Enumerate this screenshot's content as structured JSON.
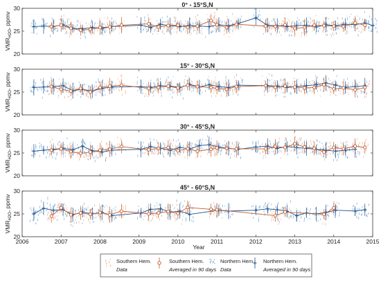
{
  "colors": {
    "southern": "#e8956b",
    "southern_dark": "#c25a2a",
    "northern": "#3d8cc9",
    "northern_dark": "#1b4f8a",
    "axis": "#333333"
  },
  "chart_data": [
    {
      "type": "scatter",
      "title": "0° - 15°S,N",
      "ylabel_main": "VMR",
      "ylabel_sub": "H2O",
      "ylabel_unit": ", ppmv",
      "xlim": [
        2006,
        2015
      ],
      "ylim": [
        20,
        30
      ],
      "yticks": [
        "20",
        "25",
        "30"
      ],
      "series": [
        {
          "name": "Southern Hem.",
          "x": [
            2006.75,
            2007.0,
            2007.25,
            2007.5,
            2007.75,
            2008.0,
            2008.25,
            2008.55,
            2009.25,
            2009.5,
            2009.75,
            2010.0,
            2010.25,
            2010.5,
            2010.85,
            2011.0,
            2011.25,
            2011.5,
            2012.25,
            2012.5,
            2012.75,
            2013.0,
            2013.25,
            2013.5,
            2013.75,
            2014.0,
            2014.25,
            2014.55,
            2014.8
          ],
          "y": [
            26.0,
            26.3,
            25.6,
            25.2,
            25.4,
            25.8,
            25.9,
            26.3,
            26.6,
            25.9,
            26.2,
            26.3,
            25.8,
            26.1,
            27.3,
            26.4,
            25.8,
            26.5,
            26.1,
            26.0,
            26.4,
            25.6,
            25.8,
            26.3,
            26.2,
            26.1,
            26.0,
            26.8,
            26.3
          ]
        },
        {
          "name": "Northern Hem.",
          "x": [
            2006.3,
            2006.55,
            2006.8,
            2007.05,
            2007.3,
            2007.55,
            2007.8,
            2008.05,
            2008.3,
            2009.05,
            2009.3,
            2009.55,
            2009.8,
            2010.05,
            2010.3,
            2010.55,
            2010.8,
            2011.05,
            2011.3,
            2011.55,
            2012.0,
            2012.3,
            2012.55,
            2012.8,
            2013.05,
            2013.3,
            2013.55,
            2013.8,
            2014.05,
            2014.3,
            2014.55,
            2014.8,
            2015.0
          ],
          "y": [
            26.0,
            26.1,
            26.0,
            26.4,
            25.6,
            25.5,
            25.8,
            25.6,
            26.0,
            26.3,
            25.8,
            26.5,
            26.2,
            26.0,
            26.3,
            26.1,
            26.0,
            26.4,
            26.2,
            26.7,
            27.9,
            26.3,
            26.2,
            26.0,
            26.2,
            26.3,
            25.9,
            26.4,
            26.2,
            26.5,
            26.4,
            26.8,
            26.2
          ]
        }
      ]
    },
    {
      "type": "scatter",
      "title": "15° - 30°S,N",
      "ylabel_main": "VMR",
      "ylabel_sub": "H2O",
      "ylabel_unit": ", ppmv",
      "xlim": [
        2006,
        2015
      ],
      "ylim": [
        20,
        30
      ],
      "yticks": [
        "20",
        "25",
        "30"
      ],
      "series": [
        {
          "name": "Southern Hem.",
          "x": [
            2006.75,
            2007.0,
            2007.25,
            2007.5,
            2007.75,
            2008.0,
            2008.25,
            2008.55,
            2009.25,
            2009.5,
            2009.75,
            2010.0,
            2010.25,
            2010.5,
            2010.85,
            2011.0,
            2011.25,
            2011.5,
            2012.25,
            2012.5,
            2012.75,
            2013.0,
            2013.25,
            2013.5,
            2013.75,
            2014.0,
            2014.25,
            2014.55,
            2014.8
          ],
          "y": [
            26.2,
            25.6,
            25.2,
            25.8,
            25.0,
            26.0,
            26.3,
            26.5,
            25.8,
            26.0,
            26.3,
            25.9,
            26.5,
            26.2,
            26.0,
            25.8,
            25.6,
            26.2,
            26.4,
            26.0,
            26.3,
            26.1,
            25.9,
            26.0,
            26.6,
            25.7,
            25.9,
            25.5,
            26.0
          ]
        },
        {
          "name": "Northern Hem.",
          "x": [
            2006.3,
            2006.55,
            2006.8,
            2007.05,
            2007.3,
            2007.55,
            2007.8,
            2008.05,
            2008.3,
            2009.05,
            2009.3,
            2009.55,
            2009.8,
            2010.05,
            2010.3,
            2010.55,
            2010.8,
            2011.05,
            2011.3,
            2011.55,
            2012.3,
            2012.55,
            2012.8,
            2013.05,
            2013.3,
            2013.55,
            2013.8,
            2014.05,
            2014.3,
            2014.55,
            2014.8
          ],
          "y": [
            26.0,
            26.1,
            26.2,
            26.4,
            25.3,
            25.6,
            25.2,
            25.8,
            26.1,
            26.2,
            26.0,
            26.4,
            26.3,
            26.0,
            26.7,
            26.1,
            26.6,
            26.2,
            26.0,
            26.5,
            26.4,
            26.3,
            26.0,
            26.2,
            26.4,
            26.6,
            27.0,
            26.5,
            26.0,
            26.2,
            26.4
          ]
        }
      ]
    },
    {
      "type": "scatter",
      "title": "30° - 45°S,N",
      "ylabel_main": "VMR",
      "ylabel_sub": "H2O",
      "ylabel_unit": ", ppmv",
      "xlim": [
        2006,
        2015
      ],
      "ylim": [
        20,
        30
      ],
      "yticks": [
        "20",
        "25",
        "30"
      ],
      "series": [
        {
          "name": "Southern Hem.",
          "x": [
            2006.75,
            2007.0,
            2007.25,
            2007.5,
            2007.75,
            2008.0,
            2008.25,
            2008.55,
            2009.25,
            2009.5,
            2009.75,
            2010.0,
            2010.25,
            2010.5,
            2010.85,
            2011.0,
            2011.25,
            2011.5,
            2012.25,
            2012.5,
            2012.75,
            2013.0,
            2013.25,
            2013.5,
            2013.75,
            2014.0,
            2014.25,
            2014.55,
            2014.8
          ],
          "y": [
            25.6,
            25.9,
            25.3,
            24.9,
            25.2,
            25.6,
            25.8,
            26.4,
            25.7,
            26.0,
            26.2,
            25.5,
            25.9,
            25.4,
            25.8,
            26.1,
            26.0,
            25.9,
            25.9,
            26.4,
            26.2,
            27.0,
            26.3,
            26.0,
            25.2,
            26.2,
            25.9,
            26.5,
            26.2
          ]
        },
        {
          "name": "Northern Hem.",
          "x": [
            2006.3,
            2006.55,
            2006.8,
            2007.05,
            2007.3,
            2007.55,
            2007.8,
            2008.05,
            2008.3,
            2009.05,
            2009.3,
            2009.55,
            2009.8,
            2010.05,
            2010.3,
            2010.55,
            2010.8,
            2011.05,
            2011.3,
            2011.55,
            2012.0,
            2012.3,
            2012.55,
            2012.8,
            2013.05,
            2013.3,
            2013.55,
            2013.8,
            2014.05,
            2014.3,
            2014.55
          ],
          "y": [
            25.4,
            25.6,
            25.8,
            26.0,
            25.7,
            26.5,
            25.5,
            25.2,
            25.6,
            25.8,
            26.4,
            26.0,
            25.6,
            26.2,
            25.9,
            26.6,
            26.8,
            26.3,
            26.0,
            25.8,
            26.3,
            26.5,
            26.0,
            26.4,
            26.2,
            26.0,
            25.8,
            25.6,
            25.4,
            25.6,
            25.8
          ]
        }
      ]
    },
    {
      "type": "scatter",
      "title": "45° - 60°S,N",
      "ylabel_main": "VMR",
      "ylabel_sub": "H2O",
      "ylabel_unit": ", ppmv",
      "xlabel": "Year",
      "xlim": [
        2006,
        2015
      ],
      "ylim": [
        20,
        30
      ],
      "yticks": [
        "20",
        "25",
        "30"
      ],
      "xticks": [
        "2006",
        "2007",
        "2008",
        "2009",
        "2010",
        "2011",
        "2012",
        "2013",
        "2014",
        "2015"
      ],
      "series": [
        {
          "name": "Southern Hem.",
          "x": [
            2006.75,
            2007.0,
            2007.25,
            2007.5,
            2007.75,
            2008.0,
            2008.25,
            2008.55,
            2009.25,
            2009.5,
            2009.75,
            2010.0,
            2010.25,
            2010.85,
            2011.0,
            2012.5,
            2012.75,
            2013.75,
            2014.0
          ],
          "y": [
            24.5,
            26.3,
            24.8,
            25.2,
            24.9,
            25.3,
            24.8,
            25.6,
            25.0,
            25.2,
            25.5,
            25.1,
            26.4,
            26.0,
            25.9,
            24.6,
            25.4,
            24.9,
            26.3
          ]
        },
        {
          "name": "Northern Hem.",
          "x": [
            2006.3,
            2006.55,
            2006.8,
            2007.05,
            2007.3,
            2007.55,
            2007.8,
            2008.05,
            2008.3,
            2009.05,
            2009.3,
            2009.55,
            2009.8,
            2010.05,
            2010.3,
            2011.05,
            2011.3,
            2012.0,
            2012.3,
            2012.55,
            2012.8,
            2013.05,
            2013.3,
            2013.55,
            2013.8,
            2014.05,
            2014.55,
            2014.8
          ],
          "y": [
            25.0,
            26.2,
            25.8,
            25.9,
            24.8,
            25.4,
            25.0,
            25.3,
            24.6,
            25.2,
            26.0,
            26.1,
            25.4,
            25.6,
            24.9,
            25.8,
            25.6,
            25.8,
            26.1,
            25.9,
            25.6,
            24.6,
            25.2,
            25.0,
            25.3,
            25.8,
            25.6,
            25.9
          ]
        }
      ]
    }
  ],
  "legend": {
    "placement": "bottom",
    "items": [
      {
        "line1": "Southern Hem.",
        "line2": "Data"
      },
      {
        "line1": "Southern Hem.",
        "line2": "Averaged in 90 days"
      },
      {
        "line1": "Northern Hem.",
        "line2": "Data"
      },
      {
        "line1": "Northern Hem.",
        "line2": "Averaged in 90 days"
      }
    ]
  }
}
